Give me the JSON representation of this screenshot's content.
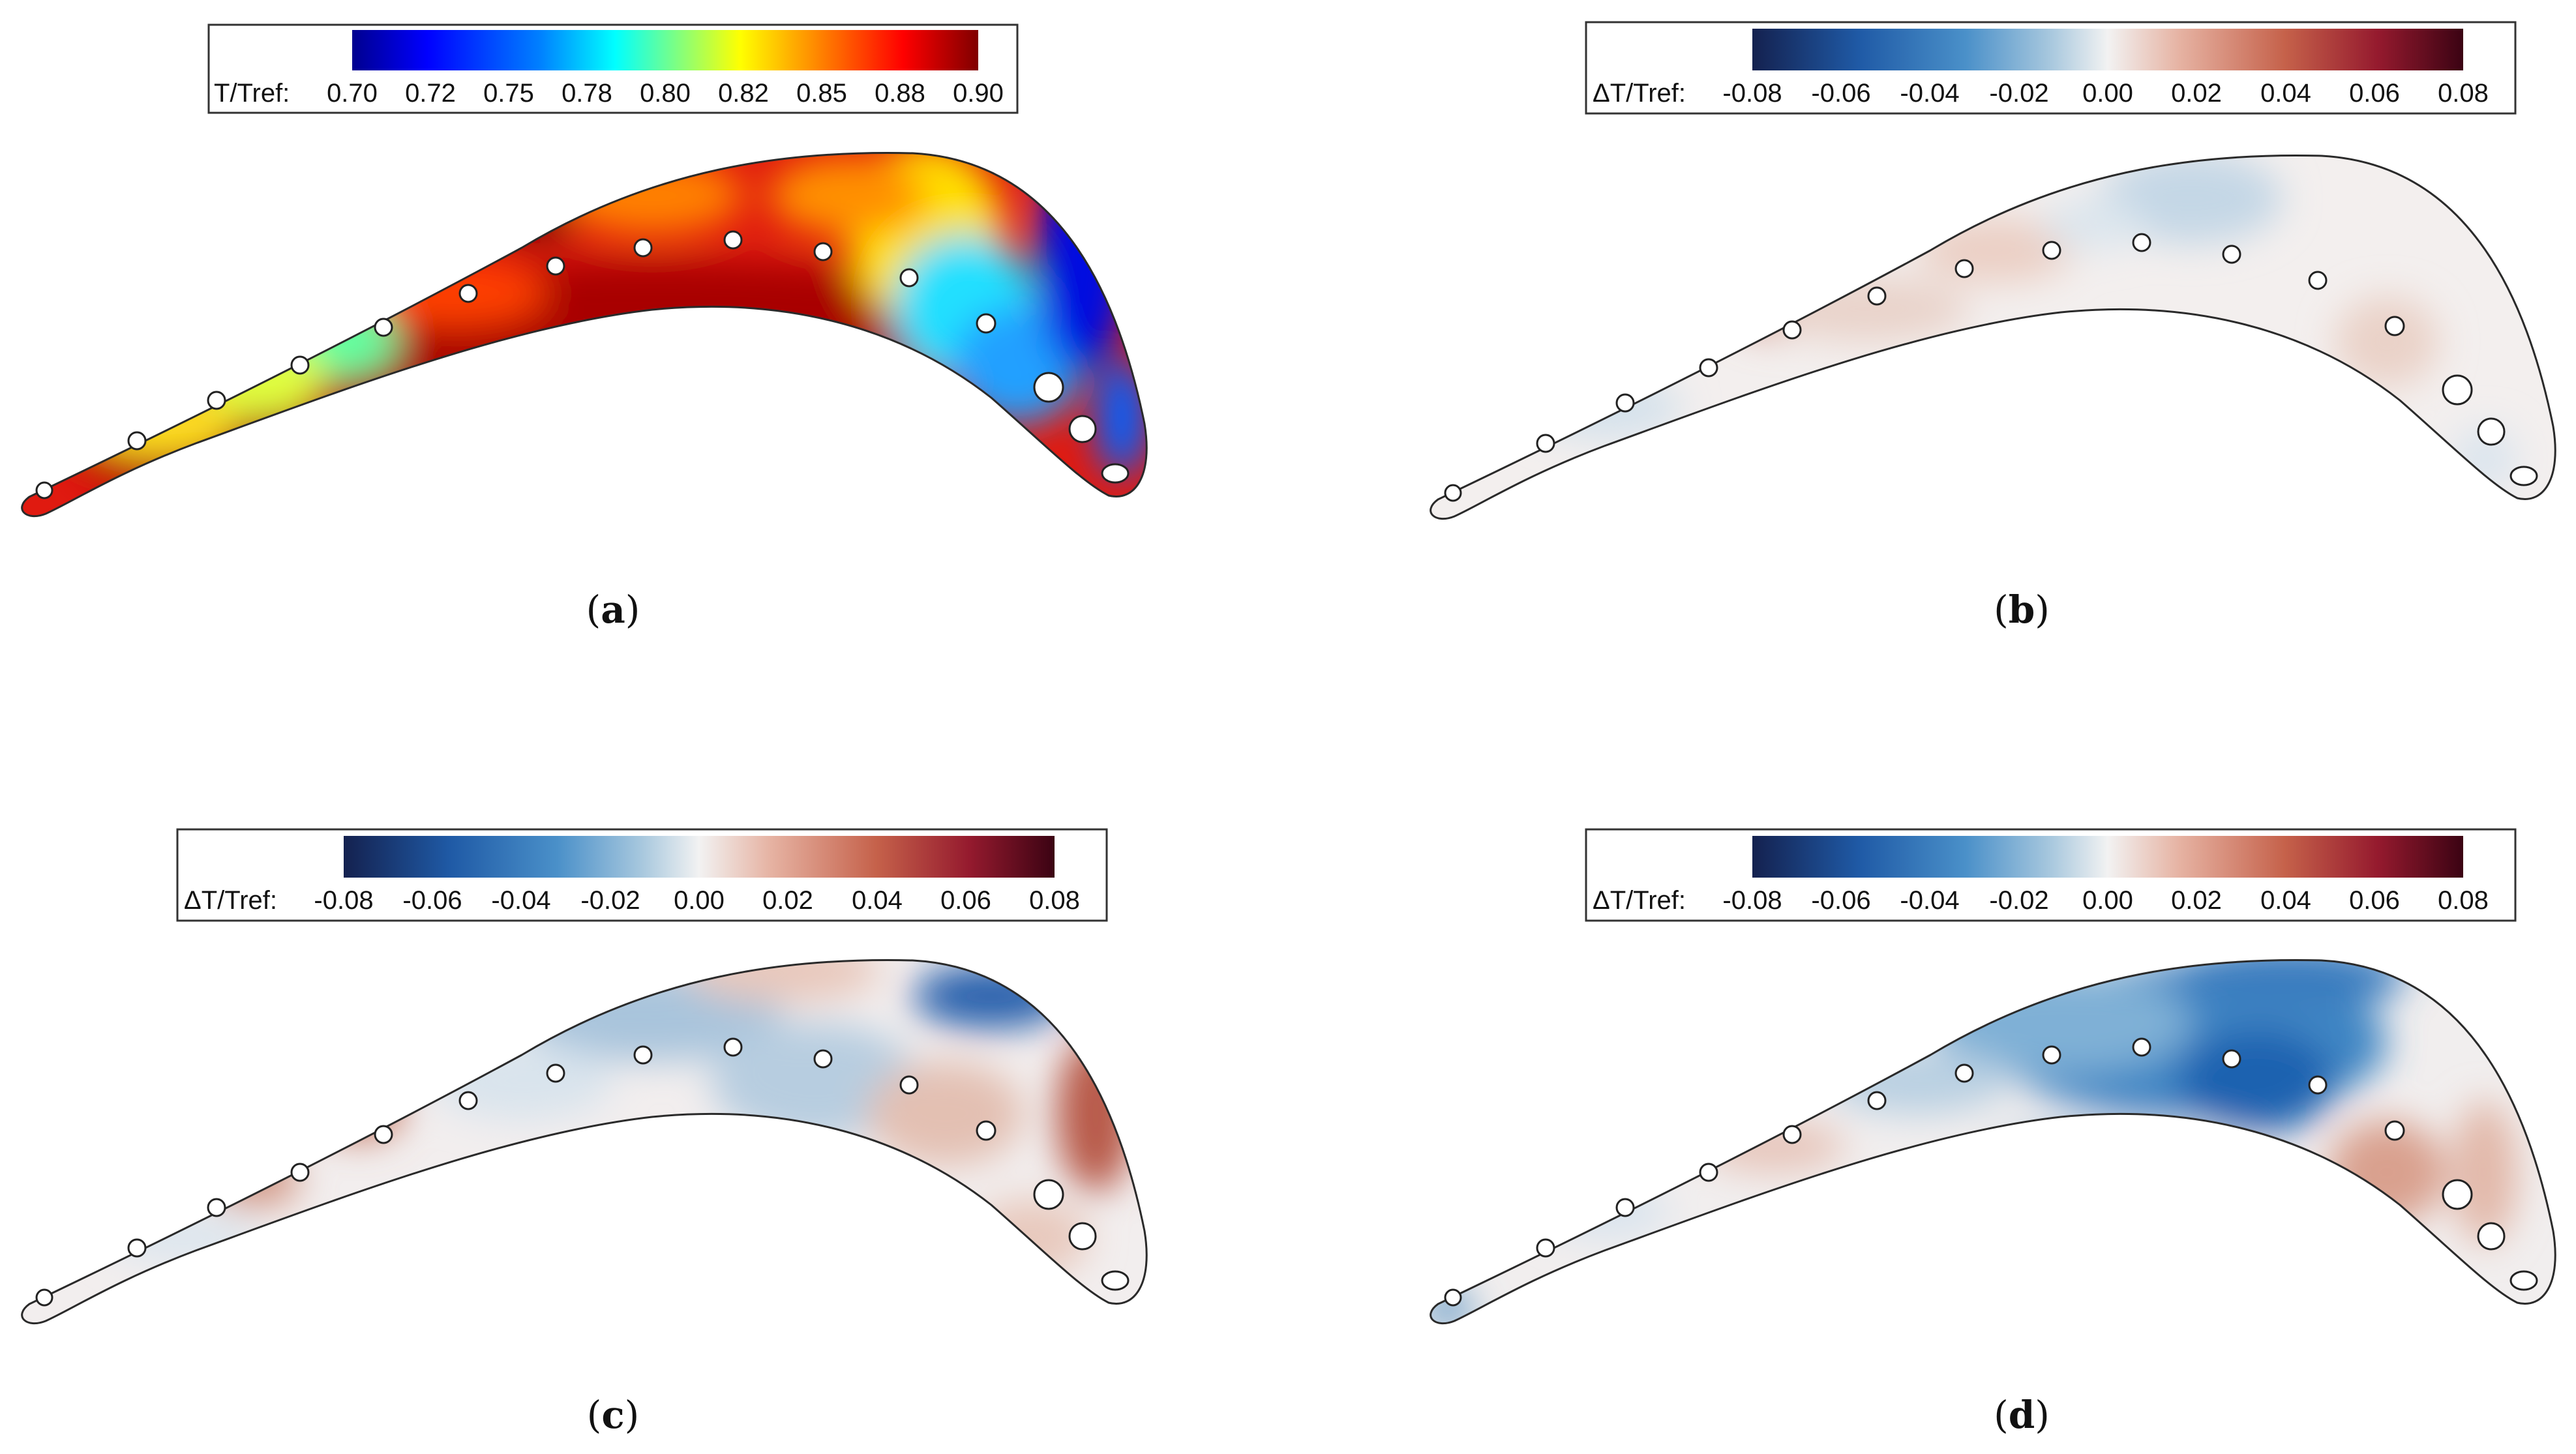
{
  "panels": [
    {
      "label": "a",
      "colorbar": {
        "name": "T/Tref:",
        "ticks": [
          "0.70",
          "0.72",
          "0.75",
          "0.78",
          "0.80",
          "0.82",
          "0.85",
          "0.88",
          "0.90"
        ],
        "colormap": [
          "#00008f",
          "#0000ff",
          "#0080ff",
          "#00ffff",
          "#80ff80",
          "#ffff00",
          "#ff8000",
          "#ff0000",
          "#800000"
        ]
      },
      "field": "temperature"
    },
    {
      "label": "b",
      "colorbar": {
        "name": "ΔT/Tref:",
        "ticks": [
          "-0.08",
          "-0.06",
          "-0.04",
          "-0.02",
          "0.00",
          "0.02",
          "0.04",
          "0.06",
          "0.08"
        ],
        "colormap": [
          "#14214f",
          "#1f5aa6",
          "#4a90c9",
          "#a8c8de",
          "#f2f2f2",
          "#e6b3a3",
          "#c5614a",
          "#951a2e",
          "#3b0313"
        ]
      },
      "field": "difference"
    },
    {
      "label": "c",
      "colorbar": {
        "name": "ΔT/Tref:",
        "ticks": [
          "-0.08",
          "-0.06",
          "-0.04",
          "-0.02",
          "0.00",
          "0.02",
          "0.04",
          "0.06",
          "0.08"
        ],
        "colormap": [
          "#14214f",
          "#1f5aa6",
          "#4a90c9",
          "#a8c8de",
          "#f2f2f2",
          "#e6b3a3",
          "#c5614a",
          "#951a2e",
          "#3b0313"
        ]
      },
      "field": "difference"
    },
    {
      "label": "d",
      "colorbar": {
        "name": "ΔT/Tref:",
        "ticks": [
          "-0.08",
          "-0.06",
          "-0.04",
          "-0.02",
          "0.00",
          "0.02",
          "0.04",
          "0.06",
          "0.08"
        ],
        "colormap": [
          "#14214f",
          "#1f5aa6",
          "#4a90c9",
          "#a8c8de",
          "#f2f2f2",
          "#e6b3a3",
          "#c5614a",
          "#951a2e",
          "#3b0313"
        ]
      },
      "field": "difference"
    }
  ]
}
